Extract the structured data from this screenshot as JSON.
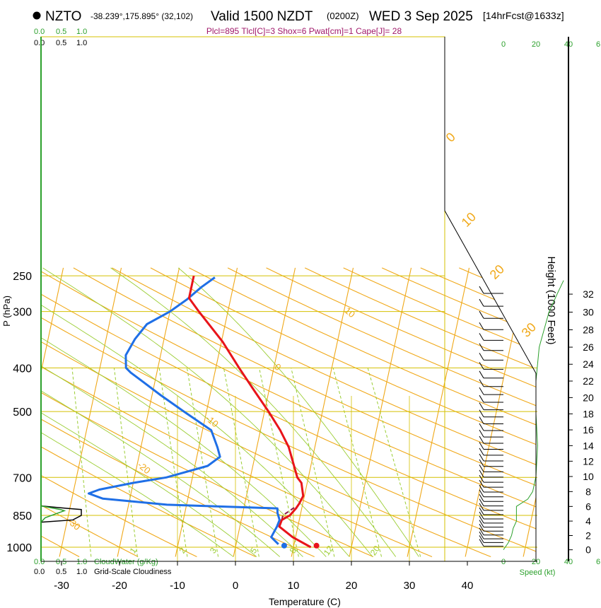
{
  "header": {
    "station": "NZTO",
    "coords": "-38.239°,175.895° (32,102)",
    "valid": "Valid 1500 NZDT",
    "zulu": "(0200Z)",
    "date": "WED 3 Sep 2025",
    "forecast": "[14hrFcst@1633z]",
    "params": "Plcl=895 Tlcl[C]=3 Shox=6 Pwat[cm]=1 Cape[J]= 28"
  },
  "colors": {
    "temperature": "#e8141a",
    "dewpoint": "#1f6fe6",
    "parcel": "#8b1a4a",
    "isotherm": "#f0a818",
    "dry_adiabat": "#f0a818",
    "moist_adiabat": "#9acd32",
    "mixing_ratio": "#9acd32",
    "cloud": "#2ca02c",
    "grid": "#d4c000",
    "params_text": "#a0186a"
  },
  "chart_data": {
    "type": "line",
    "title": "NZTO Valid 1500 NZDT (0200Z) WED 3 Sep 2025",
    "xlabel": "Temperature (C)",
    "ylabel": "P (hPa)",
    "xlim": [
      -35,
      36
    ],
    "x_ticks": [
      -30,
      -20,
      -10,
      0,
      10,
      20,
      30,
      40
    ],
    "pressure_ticks": [
      250,
      300,
      400,
      500,
      700,
      850,
      1000
    ],
    "height_label": "Height (1000 Feet)",
    "height_ticks": [
      0,
      2,
      4,
      6,
      8,
      10,
      12,
      14,
      16,
      18,
      20,
      22,
      24,
      26,
      28,
      30,
      32
    ],
    "isotherm_labels": [
      {
        "t": 10,
        "at": "near 300 hPa"
      },
      {
        "t": 0,
        "at": "near 400 hPa"
      },
      {
        "t": -10,
        "at": "near 520 hPa"
      },
      {
        "t": -20,
        "at": "near 660 hPa"
      },
      {
        "t": -30,
        "at": "near 880 hPa"
      },
      {
        "t": 0,
        "at": "right edge"
      },
      {
        "t": 10,
        "at": "right edge"
      },
      {
        "t": 20,
        "at": "right edge"
      },
      {
        "t": 30,
        "at": "right edge"
      }
    ],
    "mixing_ratio_labels": [
      "1",
      "2",
      "3",
      "5",
      "8",
      "12",
      "20"
    ],
    "series": [
      {
        "name": "Temperature",
        "points": [
          [
            1000,
            13.0
          ],
          [
            950,
            9.5
          ],
          [
            900,
            6.8
          ],
          [
            870,
            7.0
          ],
          [
            850,
            8.2
          ],
          [
            820,
            9.0
          ],
          [
            800,
            9.4
          ],
          [
            770,
            9.8
          ],
          [
            720,
            9.0
          ],
          [
            700,
            8.1
          ],
          [
            600,
            5.5
          ],
          [
            550,
            3.4
          ],
          [
            500,
            0.7
          ],
          [
            450,
            -2.5
          ],
          [
            400,
            -6.0
          ],
          [
            350,
            -9.8
          ],
          [
            300,
            -15.0
          ],
          [
            280,
            -17.2
          ],
          [
            250,
            -17.2
          ]
        ]
      },
      {
        "name": "Dewpoint",
        "points": [
          [
            985,
            7.3
          ],
          [
            950,
            5.8
          ],
          [
            900,
            6.4
          ],
          [
            870,
            6.6
          ],
          [
            840,
            6.0
          ],
          [
            820,
            5.8
          ],
          [
            805,
            -13.4
          ],
          [
            780,
            -24.7
          ],
          [
            760,
            -27.3
          ],
          [
            745,
            -25.6
          ],
          [
            720,
            -20.0
          ],
          [
            700,
            -14.5
          ],
          [
            660,
            -7.8
          ],
          [
            630,
            -6.0
          ],
          [
            600,
            -6.8
          ],
          [
            550,
            -8.5
          ],
          [
            500,
            -13.9
          ],
          [
            460,
            -18.5
          ],
          [
            430,
            -22.0
          ],
          [
            410,
            -24.5
          ],
          [
            400,
            -25.5
          ],
          [
            375,
            -26.0
          ],
          [
            345,
            -25.0
          ],
          [
            320,
            -23.5
          ],
          [
            300,
            -20.0
          ],
          [
            282,
            -17.5
          ],
          [
            265,
            -15.5
          ],
          [
            252,
            -13.5
          ]
        ]
      },
      {
        "name": "Parcel",
        "points": [
          [
            870,
            7.0
          ],
          [
            850,
            7.0
          ],
          [
            820,
            8.5
          ],
          [
            812,
            9.0
          ]
        ]
      }
    ],
    "surface_temperature": 13.0,
    "surface_dewpoint": 7.8,
    "cloud_water": {
      "label": "CloudWater (g/Kg)",
      "ticks": [
        "0.0",
        "0.5",
        "1.0"
      ]
    },
    "cloudiness": {
      "label": "Grid-Scale Cloudiness",
      "ticks": [
        "0.0",
        "0.5",
        "1.0"
      ]
    },
    "wind": {
      "label": "Speed (kt)",
      "ticks": [
        0,
        20,
        40
      ],
      "tick_labels_top": [
        "0",
        "20",
        "40"
      ],
      "tick_labels_bottom": [
        "0",
        "20",
        "40"
      ],
      "extra_top": "6",
      "speed_profile": [
        [
          0,
          0
        ],
        [
          1,
          3
        ],
        [
          2,
          5
        ],
        [
          3,
          6
        ],
        [
          4,
          8
        ],
        [
          5,
          8
        ],
        [
          6,
          8
        ],
        [
          7,
          15
        ],
        [
          8,
          18
        ],
        [
          10,
          20
        ],
        [
          14,
          21
        ],
        [
          18,
          20
        ],
        [
          22,
          20
        ],
        [
          26,
          22
        ],
        [
          30,
          28
        ],
        [
          32,
          33
        ],
        [
          33.5,
          37
        ]
      ]
    }
  }
}
